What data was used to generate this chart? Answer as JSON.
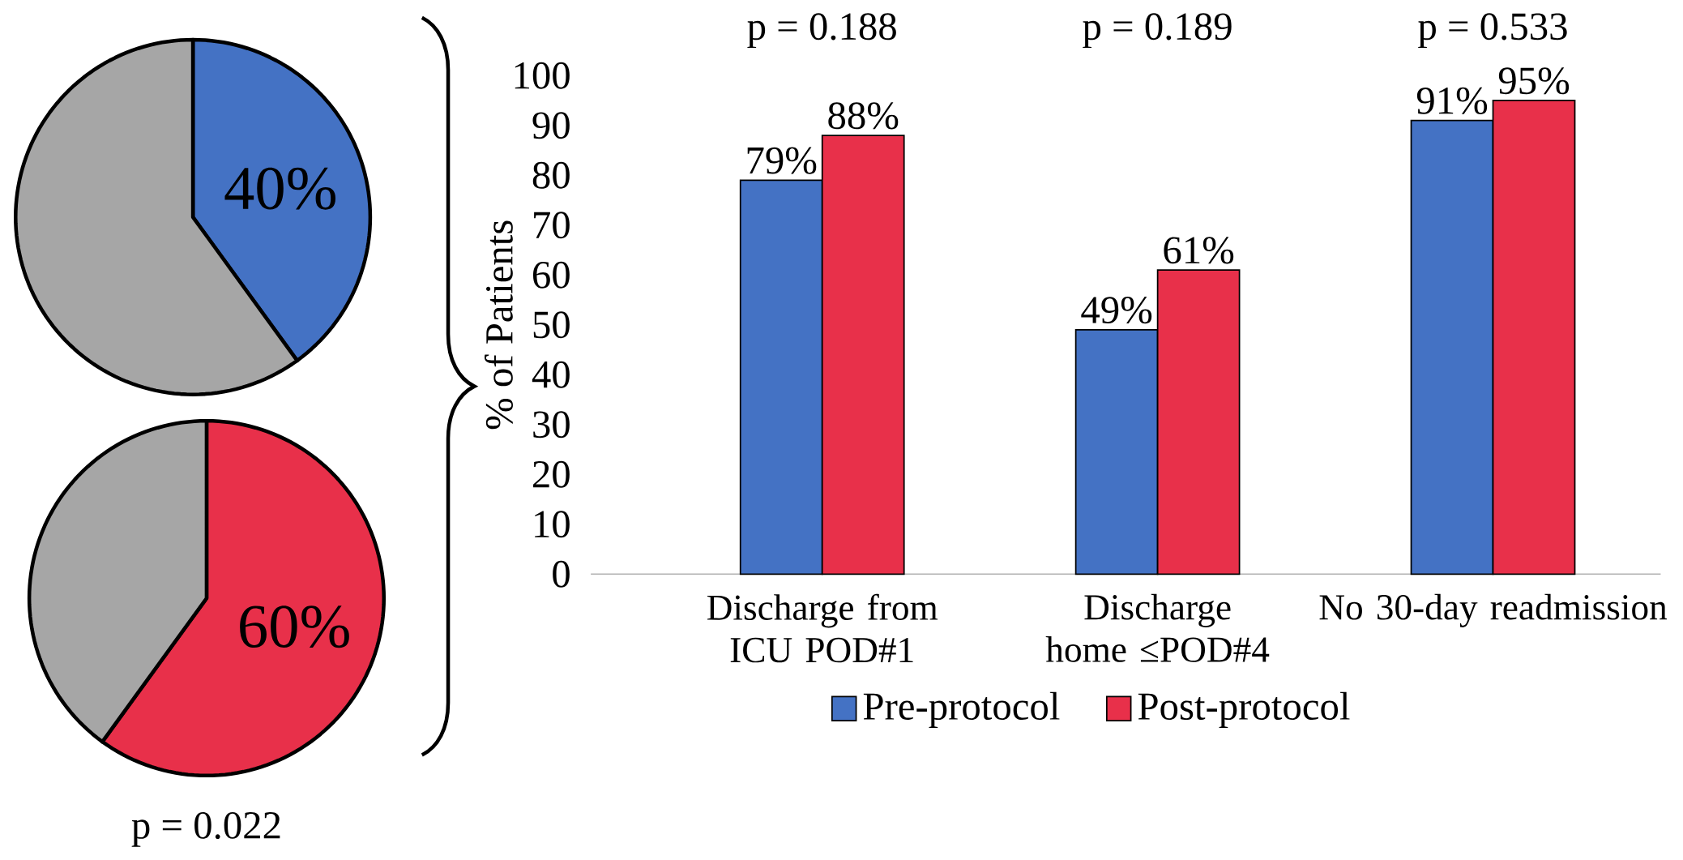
{
  "chart_data": [
    {
      "type": "pie",
      "categories": [
        null,
        null
      ],
      "values": [
        40,
        60
      ],
      "colors": [
        "#4472c4",
        "#a6a6a6"
      ],
      "value_labels": [
        "40%",
        null
      ]
    },
    {
      "type": "pie",
      "categories": [
        null,
        null
      ],
      "values": [
        60,
        40
      ],
      "colors": [
        "#e8304a",
        "#a6a6a6"
      ],
      "value_labels": [
        "60%",
        null
      ],
      "annotations": [
        "p = 0.022"
      ]
    },
    {
      "type": "bar",
      "categories": [
        "Discharge from ICU POD#1",
        "Discharge home ≤POD#4",
        "No 30-day readmission"
      ],
      "series": [
        {
          "name": "Pre-protocol",
          "color": "#4472c4",
          "values": [
            79,
            49,
            91
          ],
          "value_labels": [
            "79%",
            "49%",
            "91%"
          ]
        },
        {
          "name": "Post-protocol",
          "color": "#e8304a",
          "values": [
            88,
            61,
            95
          ],
          "value_labels": [
            "88%",
            "61%",
            "95%"
          ]
        }
      ],
      "ylabel": "% of Patients",
      "ylim": [
        0,
        100
      ],
      "yticks": [
        0,
        10,
        20,
        30,
        40,
        50,
        60,
        70,
        80,
        90,
        100
      ],
      "legend": "bottom",
      "annotations": [
        "p = 0.188",
        "p = 0.189",
        "p = 0.533"
      ]
    }
  ]
}
